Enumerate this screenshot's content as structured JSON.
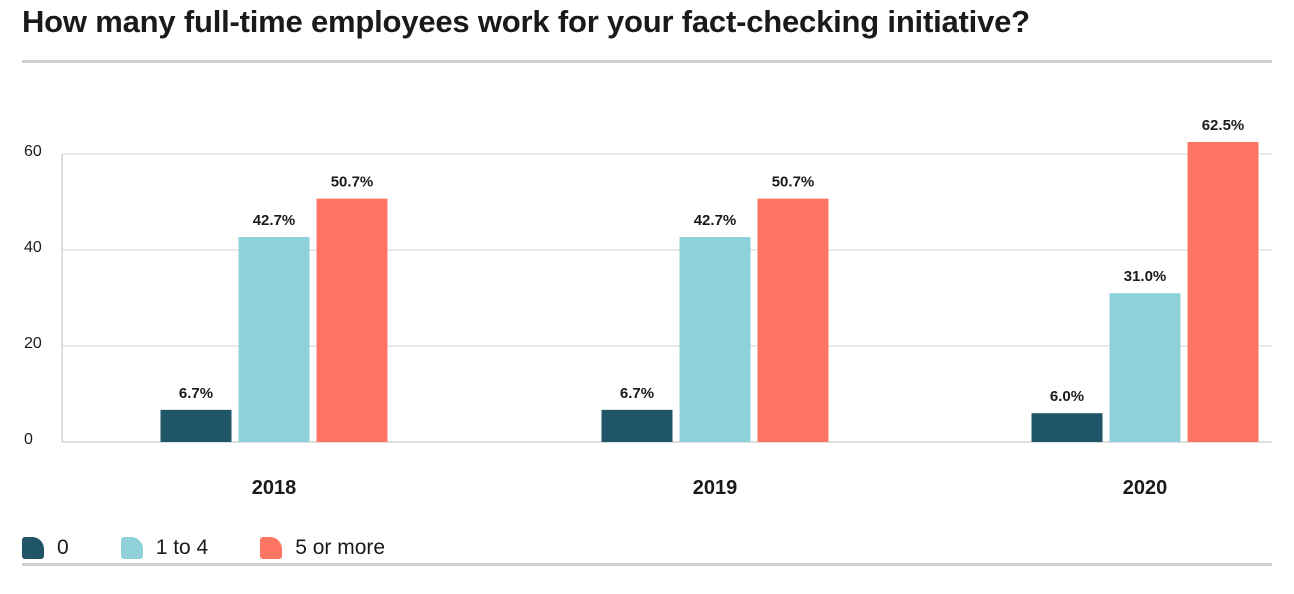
{
  "title": "How many full-time employees work for your fact-checking initiative?",
  "legend": [
    {
      "label": "0",
      "color": "#1f5566"
    },
    {
      "label": "1 to 4",
      "color": "#8fd1db"
    },
    {
      "label": "5 or more",
      "color": "#ff7563"
    }
  ],
  "chart_data": {
    "type": "bar",
    "categories": [
      "2018",
      "2019",
      "2020"
    ],
    "series": [
      {
        "name": "0",
        "color": "#1f5566",
        "values": [
          6.7,
          6.7,
          6.0
        ],
        "labels": [
          "6.7%",
          "6.7%",
          "6.0%"
        ]
      },
      {
        "name": "1 to 4",
        "color": "#8fd1db",
        "values": [
          42.7,
          42.7,
          31.0
        ],
        "labels": [
          "42.7%",
          "42.7%",
          "31.0%"
        ]
      },
      {
        "name": "5 or more",
        "color": "#ff7563",
        "values": [
          50.7,
          50.7,
          62.5
        ],
        "labels": [
          "50.7%",
          "50.7%",
          "62.5%"
        ]
      }
    ],
    "yticks": [
      0,
      20,
      40,
      60
    ],
    "ylim": [
      0,
      60
    ],
    "grid": true,
    "legend_position": "bottom-left"
  }
}
